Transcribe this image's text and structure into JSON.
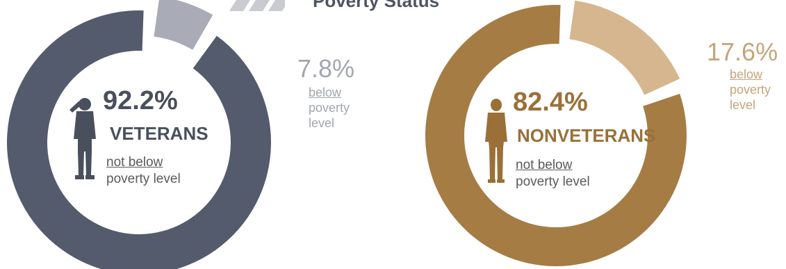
{
  "header": {
    "title": "Poverty Status"
  },
  "chart_data": [
    {
      "type": "pie",
      "group_label": "VETERANS",
      "categories": [
        "not below poverty level",
        "below poverty level"
      ],
      "values": [
        92.2,
        7.8
      ],
      "value_labels": [
        "92.2%",
        "7.8%"
      ],
      "main_desc": [
        "not below",
        "poverty level"
      ],
      "minor_desc": [
        "below",
        "poverty",
        "level"
      ],
      "colors": {
        "main": "#545b6c",
        "minor": "#a9abb6",
        "text": "#4a4f5d",
        "minor_text": "#a3a6b0"
      }
    },
    {
      "type": "pie",
      "group_label": "NONVETERANS",
      "categories": [
        "not below poverty level",
        "below poverty level"
      ],
      "values": [
        82.4,
        17.6
      ],
      "value_labels": [
        "82.4%",
        "17.6%"
      ],
      "main_desc": [
        "not below",
        "poverty level"
      ],
      "minor_desc": [
        "below",
        "poverty",
        "level"
      ],
      "colors": {
        "main": "#a67c45",
        "minor": "#d5b68e",
        "text": "#9a7038",
        "minor_text": "#c5a47a"
      }
    }
  ]
}
